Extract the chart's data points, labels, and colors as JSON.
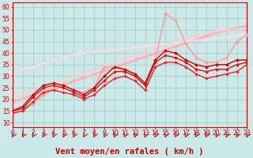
{
  "xlabel": "Vent moyen/en rafales ( km/h )",
  "xlim": [
    0,
    23
  ],
  "ylim": [
    8,
    62
  ],
  "yticks": [
    10,
    15,
    20,
    25,
    30,
    35,
    40,
    45,
    50,
    55,
    60
  ],
  "xticks": [
    0,
    1,
    2,
    3,
    4,
    5,
    6,
    7,
    8,
    9,
    10,
    11,
    12,
    13,
    14,
    15,
    16,
    17,
    18,
    19,
    20,
    21,
    22,
    23
  ],
  "bg_color": "#cce8e8",
  "grid_color": "#aacccc",
  "axis_color": "#cc0000",
  "font_color": "#cc0000",
  "tick_fontsize": 5.5,
  "xlabel_fontsize": 7.5,
  "lines": [
    {
      "x": [
        0,
        1,
        2,
        3,
        4,
        5,
        6,
        7,
        8,
        9,
        10,
        11,
        12,
        13,
        14,
        15,
        16,
        17,
        18,
        19,
        20,
        21,
        22,
        23
      ],
      "y": [
        19.0,
        20.5,
        22.0,
        23.5,
        25.0,
        26.5,
        28.0,
        29.5,
        31.0,
        32.5,
        34.0,
        35.5,
        37.0,
        38.5,
        40.0,
        41.5,
        43.0,
        44.5,
        46.0,
        47.5,
        49.0,
        50.0,
        51.0,
        52.0
      ],
      "color": "#ffaaaa",
      "lw": 1.0,
      "marker": "D",
      "ms": 1.8,
      "zorder": 2
    },
    {
      "x": [
        0,
        1,
        2,
        3,
        4,
        5,
        6,
        7,
        8,
        9,
        10,
        11,
        12,
        13,
        14,
        15,
        16,
        17,
        18,
        19,
        20,
        21,
        22,
        23
      ],
      "y": [
        18.5,
        20.0,
        21.5,
        23.0,
        24.5,
        26.0,
        27.5,
        29.0,
        30.5,
        32.0,
        33.5,
        35.0,
        36.5,
        38.0,
        39.5,
        41.0,
        42.5,
        44.0,
        45.5,
        47.0,
        48.5,
        49.5,
        50.5,
        51.5
      ],
      "color": "#ffbbbb",
      "lw": 1.0,
      "marker": "D",
      "ms": 1.8,
      "zorder": 2
    },
    {
      "x": [
        0,
        1,
        2,
        3,
        4,
        5,
        6,
        7,
        8,
        9,
        10,
        11,
        12,
        13,
        14,
        15,
        16,
        17,
        18,
        19,
        20,
        21,
        22,
        23
      ],
      "y": [
        22.0,
        23.0,
        24.0,
        25.5,
        27.0,
        28.5,
        30.0,
        31.5,
        33.0,
        34.5,
        36.0,
        37.5,
        39.0,
        40.5,
        42.0,
        43.5,
        45.0,
        46.5,
        47.5,
        48.5,
        49.5,
        50.0,
        50.5,
        51.0
      ],
      "color": "#ffcccc",
      "lw": 1.0,
      "marker": "D",
      "ms": 1.8,
      "zorder": 2
    },
    {
      "x": [
        0,
        1,
        2,
        3,
        4,
        5,
        6,
        7,
        8,
        9,
        10,
        11,
        12,
        13,
        14,
        15,
        16,
        17,
        18,
        19,
        20,
        21,
        22,
        23
      ],
      "y": [
        32.0,
        33.0,
        34.0,
        35.5,
        37.0,
        38.5,
        39.5,
        40.0,
        40.5,
        41.0,
        41.5,
        42.0,
        42.5,
        43.0,
        43.5,
        44.0,
        44.5,
        45.0,
        45.5,
        46.0,
        46.5,
        47.0,
        47.5,
        48.0
      ],
      "color": "#ffdddd",
      "lw": 1.2,
      "marker": "D",
      "ms": 1.8,
      "zorder": 2
    },
    {
      "x": [
        0,
        1,
        2,
        3,
        4,
        5,
        6,
        7,
        8,
        9,
        10,
        11,
        12,
        13,
        14,
        15,
        16,
        17,
        18,
        19,
        20,
        21,
        22,
        23
      ],
      "y": [
        14,
        15,
        18,
        22,
        24,
        26,
        24,
        23,
        25,
        34,
        34,
        32,
        31,
        26,
        37,
        57,
        54,
        44,
        38,
        36,
        36,
        38,
        45,
        48
      ],
      "color": "#ff9999",
      "lw": 1.0,
      "marker": "D",
      "ms": 2.0,
      "zorder": 3
    },
    {
      "x": [
        0,
        1,
        2,
        3,
        4,
        5,
        6,
        7,
        8,
        9,
        10,
        11,
        12,
        13,
        14,
        15,
        16,
        17,
        18,
        19,
        20,
        21,
        22,
        23
      ],
      "y": [
        15,
        17,
        22,
        26,
        27,
        26,
        24,
        22,
        25,
        30,
        34,
        33,
        31,
        27,
        37,
        41,
        40,
        37,
        35,
        34,
        35,
        35,
        37,
        37
      ],
      "color": "#cc0000",
      "lw": 1.0,
      "marker": "D",
      "ms": 2.0,
      "zorder": 3
    },
    {
      "x": [
        0,
        1,
        2,
        3,
        4,
        5,
        6,
        7,
        8,
        9,
        10,
        11,
        12,
        13,
        14,
        15,
        16,
        17,
        18,
        19,
        20,
        21,
        22,
        23
      ],
      "y": [
        15,
        16,
        21,
        25,
        26,
        25,
        23,
        21,
        24,
        28,
        32,
        32,
        30,
        26,
        36,
        39,
        38,
        36,
        33,
        32,
        33,
        33,
        35,
        36
      ],
      "color": "#dd1111",
      "lw": 1.0,
      "marker": "D",
      "ms": 2.0,
      "zorder": 3
    },
    {
      "x": [
        0,
        1,
        2,
        3,
        4,
        5,
        6,
        7,
        8,
        9,
        10,
        11,
        12,
        13,
        14,
        15,
        16,
        17,
        18,
        19,
        20,
        21,
        22,
        23
      ],
      "y": [
        14,
        15,
        19,
        23,
        24,
        23,
        22,
        20,
        22,
        26,
        29,
        30,
        28,
        24,
        34,
        36,
        36,
        34,
        31,
        29,
        30,
        31,
        32,
        35
      ],
      "color": "#ee2222",
      "lw": 1.0,
      "marker": "D",
      "ms": 1.8,
      "zorder": 3
    }
  ],
  "arrow_color": "#cc0000"
}
